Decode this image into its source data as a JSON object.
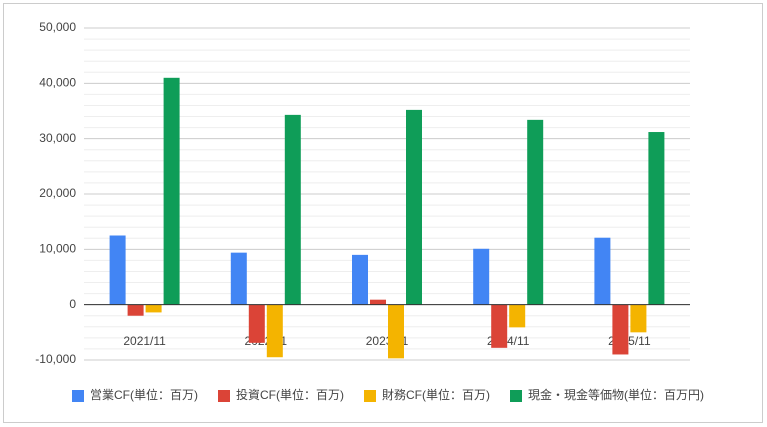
{
  "chart_data": {
    "type": "bar",
    "categories": [
      "2021/11",
      "2022/11",
      "2023/11",
      "2024/11",
      "2025/11"
    ],
    "series": [
      {
        "name": "営業CF(単位：百万)",
        "color": "#4285f4",
        "values": [
          12500,
          9400,
          9000,
          10100,
          12100
        ]
      },
      {
        "name": "投資CF(単位：百万)",
        "color": "#db4437",
        "values": [
          -2000,
          -6900,
          900,
          -7800,
          -9000
        ]
      },
      {
        "name": "財務CF(単位：百万)",
        "color": "#f4b400",
        "values": [
          -1400,
          -9500,
          -9700,
          -4100,
          -5000
        ]
      },
      {
        "name": "現金・現金等価物(単位：百万円)",
        "color": "#0f9d58",
        "values": [
          41000,
          34300,
          35200,
          33400,
          31200
        ]
      }
    ],
    "ylim": [
      -10000,
      50000
    ],
    "yticks": [
      {
        "value": -10000,
        "label": "-10,000"
      },
      0,
      {
        "value": 10000,
        "label": "10,000"
      },
      {
        "value": 20000,
        "label": "20,000"
      },
      {
        "value": 30000,
        "label": "30,000"
      },
      {
        "value": 40000,
        "label": "40,000"
      },
      {
        "value": 50000,
        "label": "50,000"
      }
    ],
    "minor_yticks": [
      -8000,
      -6000,
      -4000,
      -2000,
      2000,
      4000,
      6000,
      8000,
      12000,
      14000,
      16000,
      18000,
      22000,
      24000,
      26000,
      28000,
      32000,
      34000,
      36000,
      38000,
      42000,
      44000,
      46000,
      48000
    ],
    "grid": true,
    "legend": "bottom"
  }
}
